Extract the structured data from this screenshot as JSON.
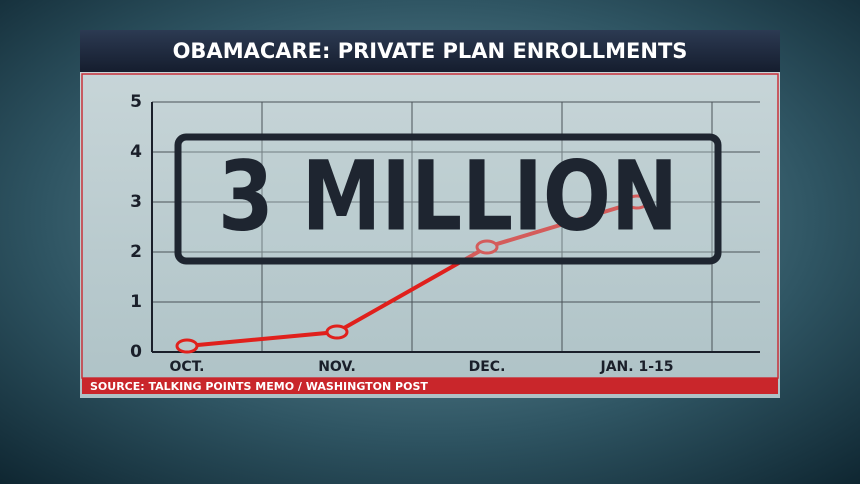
{
  "chart_data": {
    "type": "line",
    "title": "OBAMACARE: PRIVATE PLAN ENROLLMENTS",
    "categories": [
      "OCT.",
      "NOV.",
      "DEC.",
      "JAN. 1-15"
    ],
    "series": [
      {
        "color": "#e0201c",
        "values": [
          0.12,
          0.4,
          2.1,
          3.0
        ]
      }
    ],
    "ylim": [
      0,
      5
    ],
    "yticks": [
      0,
      1,
      2,
      3,
      4,
      5
    ],
    "grid": true,
    "annotation": "3 MILLION",
    "source": "SOURCE: TALKING POINTS MEMO / WASHINGTON POST"
  }
}
